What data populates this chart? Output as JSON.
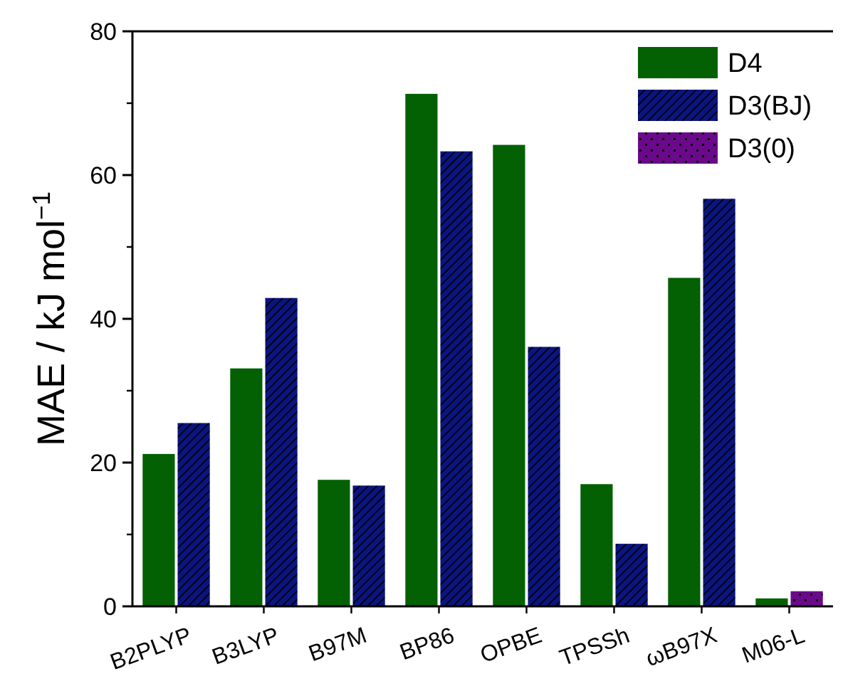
{
  "chart_data": {
    "type": "bar",
    "ylabel": "MAE / kJ mol$^{−1}$",
    "categories": [
      "B2PLYP",
      "B3LYP",
      "B97M",
      "BP86",
      "OPBE",
      "TPSSh",
      "ωB97X",
      "M06-L"
    ],
    "series": [
      {
        "name": "D4",
        "color": "#036003",
        "values": [
          21.2,
          33.1,
          17.6,
          71.3,
          64.2,
          17.0,
          45.7,
          1.1
        ]
      },
      {
        "name": "D3(BJ)",
        "color": "#0a1580",
        "values": [
          25.5,
          42.9,
          16.8,
          63.3,
          36.1,
          8.7,
          56.7,
          null
        ]
      },
      {
        "name": "D3(0)",
        "color": "#6a0a8a",
        "values": [
          null,
          null,
          null,
          null,
          null,
          null,
          null,
          2.1
        ]
      }
    ],
    "ylim": [
      0,
      80
    ],
    "yticks": [
      0,
      20,
      40,
      60,
      80
    ],
    "legend": "top right"
  }
}
